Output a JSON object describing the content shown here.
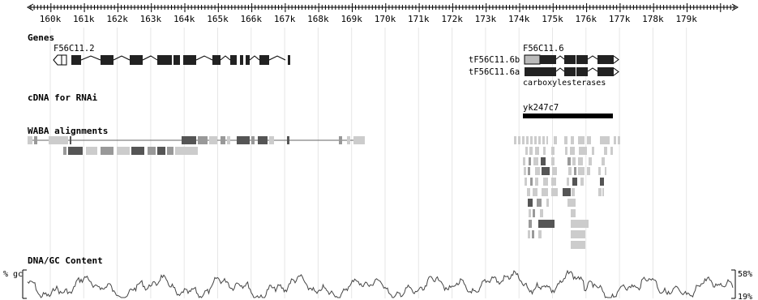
{
  "ruler": {
    "ticks": [
      "160k",
      "161k",
      "162k",
      "163k",
      "164k",
      "165k",
      "166k",
      "167k",
      "168k",
      "169k",
      "170k",
      "171k",
      "172k",
      "173k",
      "174k",
      "175k",
      "176k",
      "177k",
      "178k",
      "179k"
    ]
  },
  "tracks": {
    "genes": {
      "title": "Genes",
      "gene_left_label": "F56C11.2",
      "gene_right_label": "F56C11.6",
      "transcript_b_label": "tF56C11.6b",
      "transcript_a_label": "tF56C11.6a",
      "description": "carboxylesterases"
    },
    "cdna": {
      "title": "cDNA for RNAi",
      "clone_label": "yk247c7"
    },
    "waba": {
      "title": "WABA alignments"
    },
    "gc": {
      "title": "DNA/GC Content",
      "left_label": "% gc",
      "max_label": "58%",
      "min_label": "19%"
    }
  },
  "colors": {
    "exon_dark": "#222222",
    "waba_dark": "#555555",
    "waba_mid": "#999999",
    "waba_light": "#cccccc",
    "grid": "#e6e6e6"
  }
}
